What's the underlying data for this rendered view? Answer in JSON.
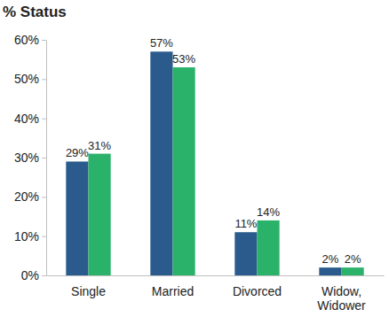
{
  "chart_data": {
    "type": "bar",
    "title": "% Status",
    "categories": [
      "Single",
      "Married",
      "Divorced",
      "Widow, Widower"
    ],
    "series": [
      {
        "color": "#2a5b8c",
        "values": [
          29,
          57,
          11,
          2
        ],
        "value_labels": [
          "29%",
          "57%",
          "11%",
          "2%"
        ]
      },
      {
        "color": "#2bb26a",
        "values": [
          31,
          53,
          14,
          2
        ],
        "value_labels": [
          "31%",
          "53%",
          "14%",
          "2%"
        ]
      }
    ],
    "ylim": [
      0,
      60
    ],
    "yticks": [
      {
        "value": 0,
        "label": "0%"
      },
      {
        "value": 10,
        "label": "10%"
      },
      {
        "value": 20,
        "label": "20%"
      },
      {
        "value": 30,
        "label": "30%"
      },
      {
        "value": 40,
        "label": "40%"
      },
      {
        "value": 50,
        "label": "50%"
      },
      {
        "value": 60,
        "label": "60%"
      }
    ],
    "grid": false,
    "data_labels": true
  }
}
